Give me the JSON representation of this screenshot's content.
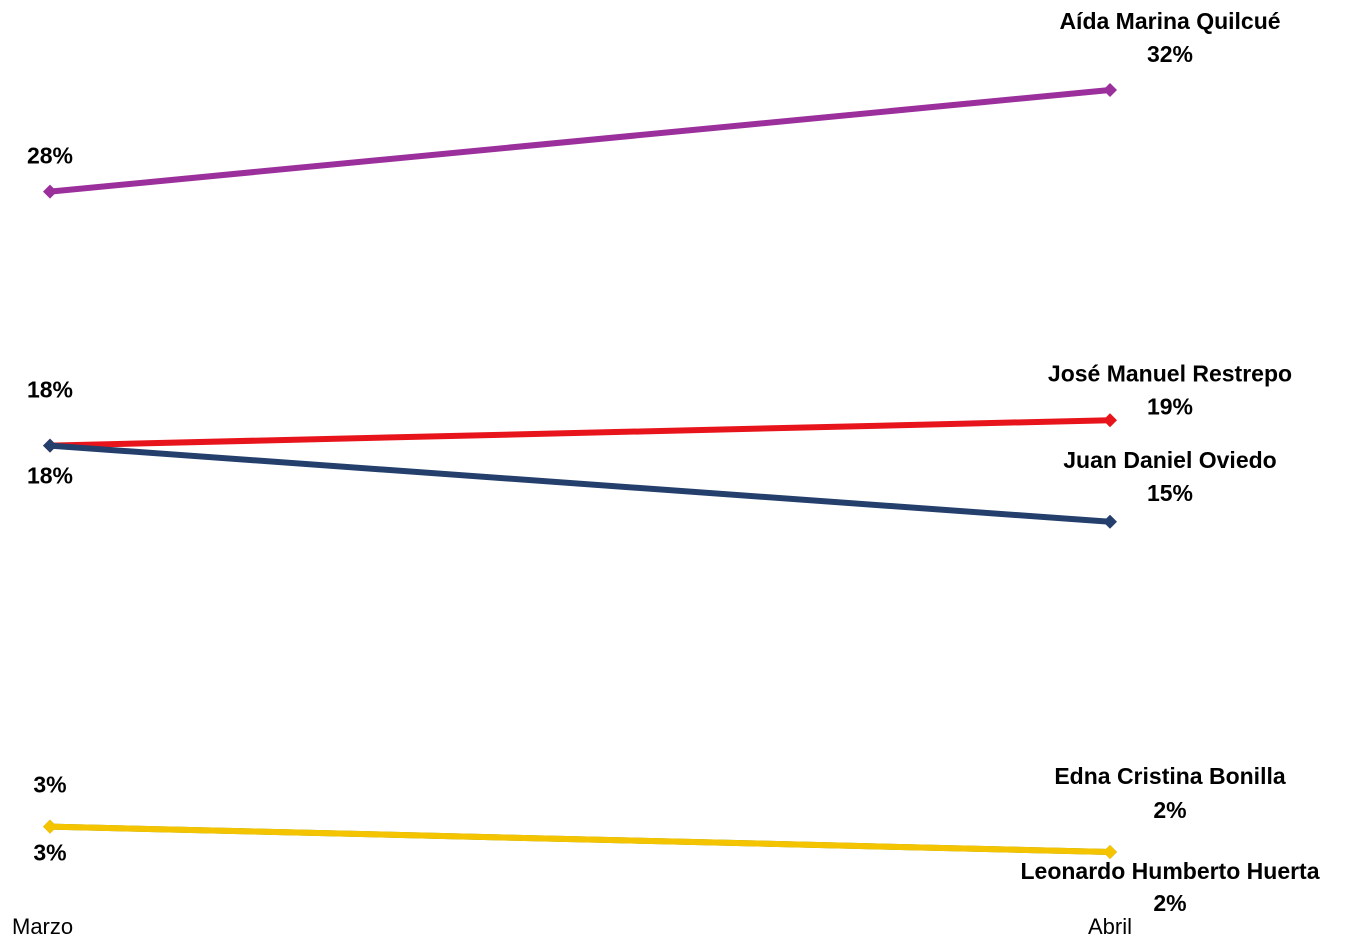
{
  "chart_data": {
    "type": "line",
    "categories": [
      "Marzo",
      "Abril"
    ],
    "series": [
      {
        "name": "Aída Marina Quilcué",
        "color": "#9b2f9b",
        "values": [
          28,
          32
        ],
        "value_labels": [
          "28%",
          "32%"
        ]
      },
      {
        "name": "José Manuel Restrepo",
        "color": "#e8141b",
        "values": [
          18,
          19
        ],
        "value_labels": [
          "18%",
          "19%"
        ]
      },
      {
        "name": "Juan Daniel Oviedo",
        "color": "#243f6b",
        "values": [
          18,
          15
        ],
        "value_labels": [
          "18%",
          "15%"
        ]
      },
      {
        "name": "Edna Cristina Bonilla",
        "color": "#6b8e23",
        "values": [
          3,
          2
        ],
        "value_labels": [
          "3%",
          "2%"
        ]
      },
      {
        "name": "Leonardo Humberto Huerta",
        "color": "#f5c400",
        "values": [
          3,
          2
        ],
        "value_labels": [
          "3%",
          "2%"
        ]
      }
    ]
  }
}
